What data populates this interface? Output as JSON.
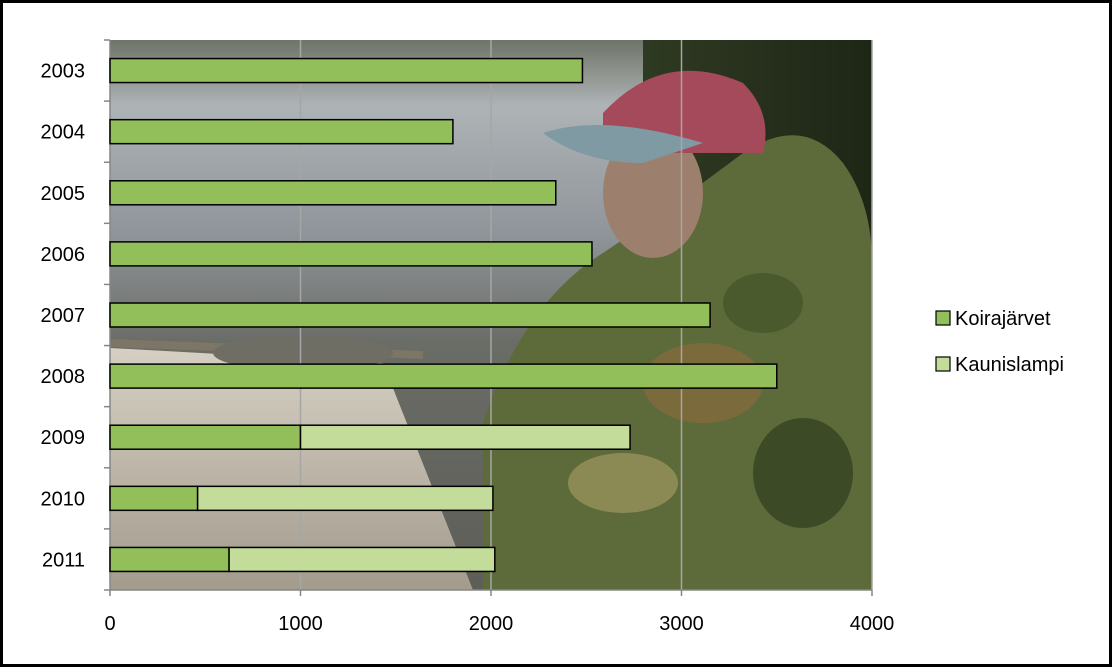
{
  "chart_data": {
    "type": "bar",
    "orientation": "horizontal",
    "stacked": true,
    "categories": [
      "2003",
      "2004",
      "2005",
      "2006",
      "2007",
      "2008",
      "2009",
      "2010",
      "2011"
    ],
    "series": [
      {
        "name": "Koirajärvet",
        "values": [
          2480,
          1800,
          2340,
          2530,
          3150,
          3500,
          1000,
          460,
          625
        ],
        "color": "#92bf5a"
      },
      {
        "name": "Kaunislampi",
        "values": [
          0,
          0,
          0,
          0,
          0,
          0,
          1730,
          1550,
          1395
        ],
        "color": "#c3dc99"
      }
    ],
    "xlim": [
      0,
      4000
    ],
    "xticks": [
      "0",
      "1000",
      "2000",
      "3000",
      "4000"
    ],
    "grid": true,
    "legend_position": "right",
    "plot_background": "photograph of a fisherman in a camouflage jacket and red cap holding a fish at a lake shore",
    "title": "",
    "xlabel": "",
    "ylabel": ""
  }
}
